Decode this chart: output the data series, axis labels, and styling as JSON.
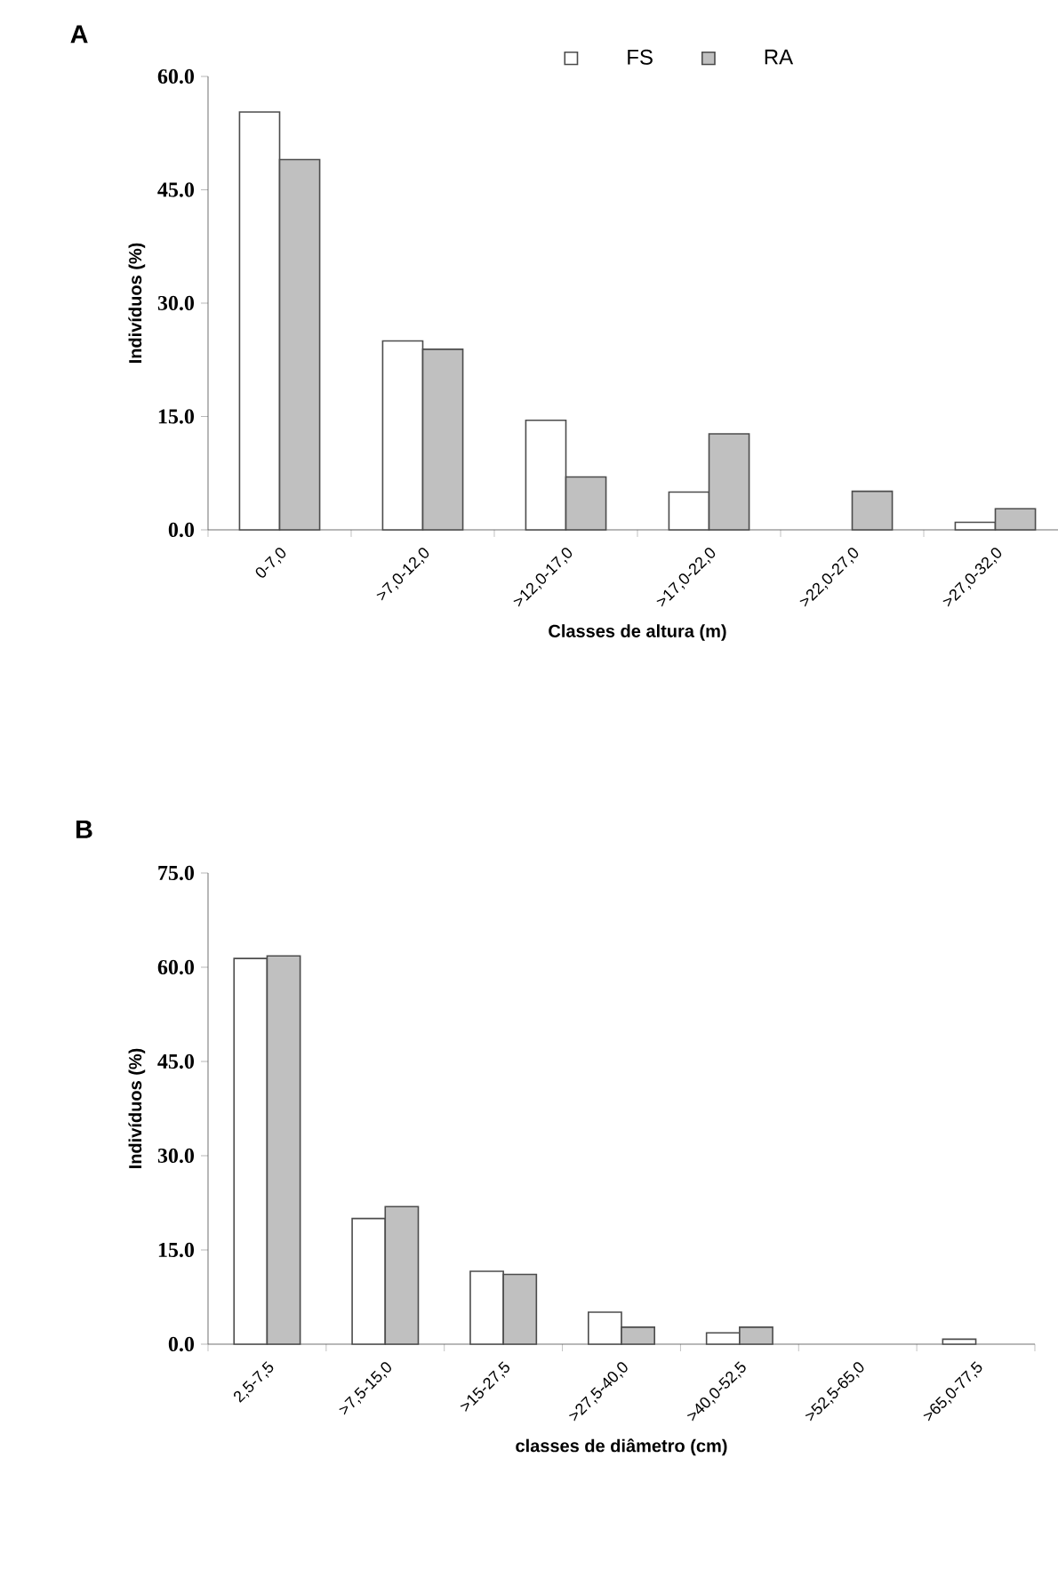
{
  "chart_data": [
    {
      "type": "bar",
      "title": "A",
      "xlabel": "Classes de altura (m)",
      "ylabel": "Indivíduos (%)",
      "categories": [
        "0-7,0",
        ">7,0-12,0",
        ">12,0-17,0",
        ">17,0-22,0",
        ">22,0-27,0",
        ">27,0-32,0"
      ],
      "series": [
        {
          "name": "FS",
          "color": "#ffffff",
          "values": [
            55.3,
            25.0,
            14.5,
            5.0,
            0,
            1.0
          ]
        },
        {
          "name": "RA",
          "color": "#c0c0c0",
          "values": [
            49.0,
            23.9,
            7.0,
            12.7,
            5.1,
            2.8
          ]
        }
      ],
      "ylim": [
        0,
        60
      ],
      "yticks": [
        {
          "value": 0,
          "label": "0.0"
        },
        {
          "value": 15,
          "label": "15.0"
        },
        {
          "value": 30,
          "label": "30.0"
        },
        {
          "value": 45,
          "label": "45.0"
        },
        {
          "value": 60,
          "label": "60.0"
        }
      ],
      "legend": "top"
    },
    {
      "type": "bar",
      "title": "B",
      "xlabel": "classes de diâmetro (cm)",
      "ylabel": "Indivíduos (%)",
      "categories": [
        "2,5-7,5",
        ">7,5-15,0",
        ">15-27,5",
        ">27,5-40,0",
        ">40,0-52,5",
        ">52,5-65,0",
        ">65,0-77,5"
      ],
      "series": [
        {
          "color": "#ffffff",
          "values": [
            61.4,
            20.0,
            11.6,
            5.1,
            1.8,
            0,
            0.8
          ]
        },
        {
          "color": "#c0c0c0",
          "values": [
            61.8,
            21.9,
            11.1,
            2.7,
            2.7,
            0,
            0
          ]
        }
      ],
      "ylim": [
        0,
        75
      ],
      "yticks": [
        {
          "value": 0,
          "label": "0.0"
        },
        {
          "value": 15,
          "label": "15.0"
        },
        {
          "value": 30,
          "label": "30.0"
        },
        {
          "value": 45,
          "label": "45.0"
        },
        {
          "value": 60,
          "label": "60.0"
        },
        {
          "value": 75,
          "label": "75.0"
        }
      ]
    }
  ]
}
